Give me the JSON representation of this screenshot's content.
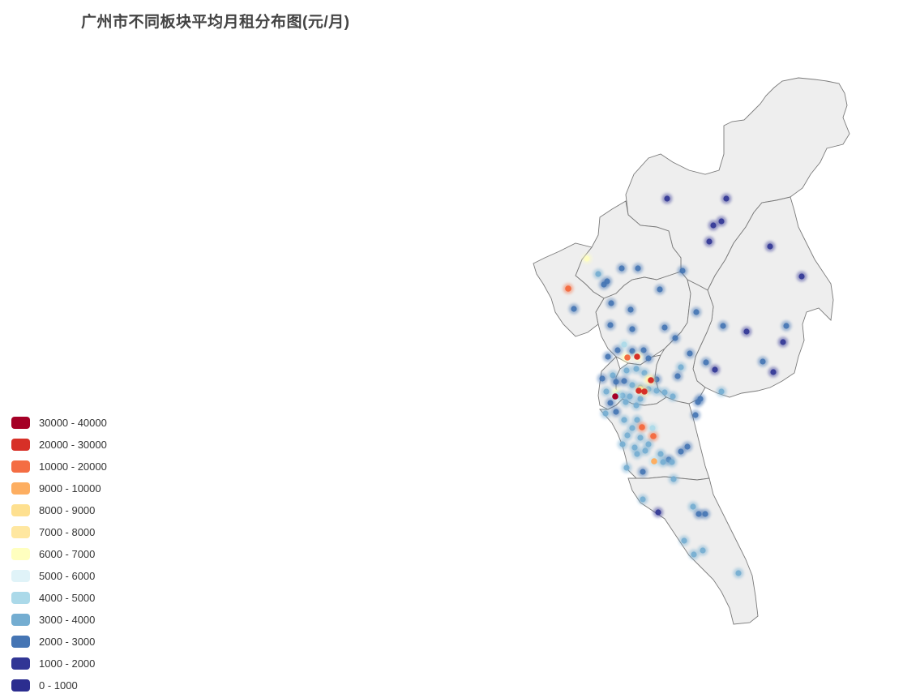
{
  "title": "广州市不同板块平均月租分布图(元/月)",
  "legend": [
    {
      "label": "30000 - 40000",
      "color": "#a50026"
    },
    {
      "label": "20000 - 30000",
      "color": "#d73027"
    },
    {
      "label": "10000 - 20000",
      "color": "#f46d43"
    },
    {
      "label": "9000 - 10000",
      "color": "#fdae61"
    },
    {
      "label": "8000 - 9000",
      "color": "#fee090"
    },
    {
      "label": "7000 - 8000",
      "color": "#ffe7a0"
    },
    {
      "label": "6000 - 7000",
      "color": "#ffffbf"
    },
    {
      "label": "5000 - 6000",
      "color": "#e0f3f8"
    },
    {
      "label": "4000 - 5000",
      "color": "#abd9e9"
    },
    {
      "label": "3000 - 4000",
      "color": "#74add1"
    },
    {
      "label": "2000 - 3000",
      "color": "#4575b4"
    },
    {
      "label": "1000 - 2000",
      "color": "#313695"
    },
    {
      "label": "0 - 1000",
      "color": "#2b2d8f"
    }
  ],
  "colors": {
    "region_fill": "#eeeeee",
    "region_stroke": "#7a7a7a",
    "title": "#444444"
  }
}
